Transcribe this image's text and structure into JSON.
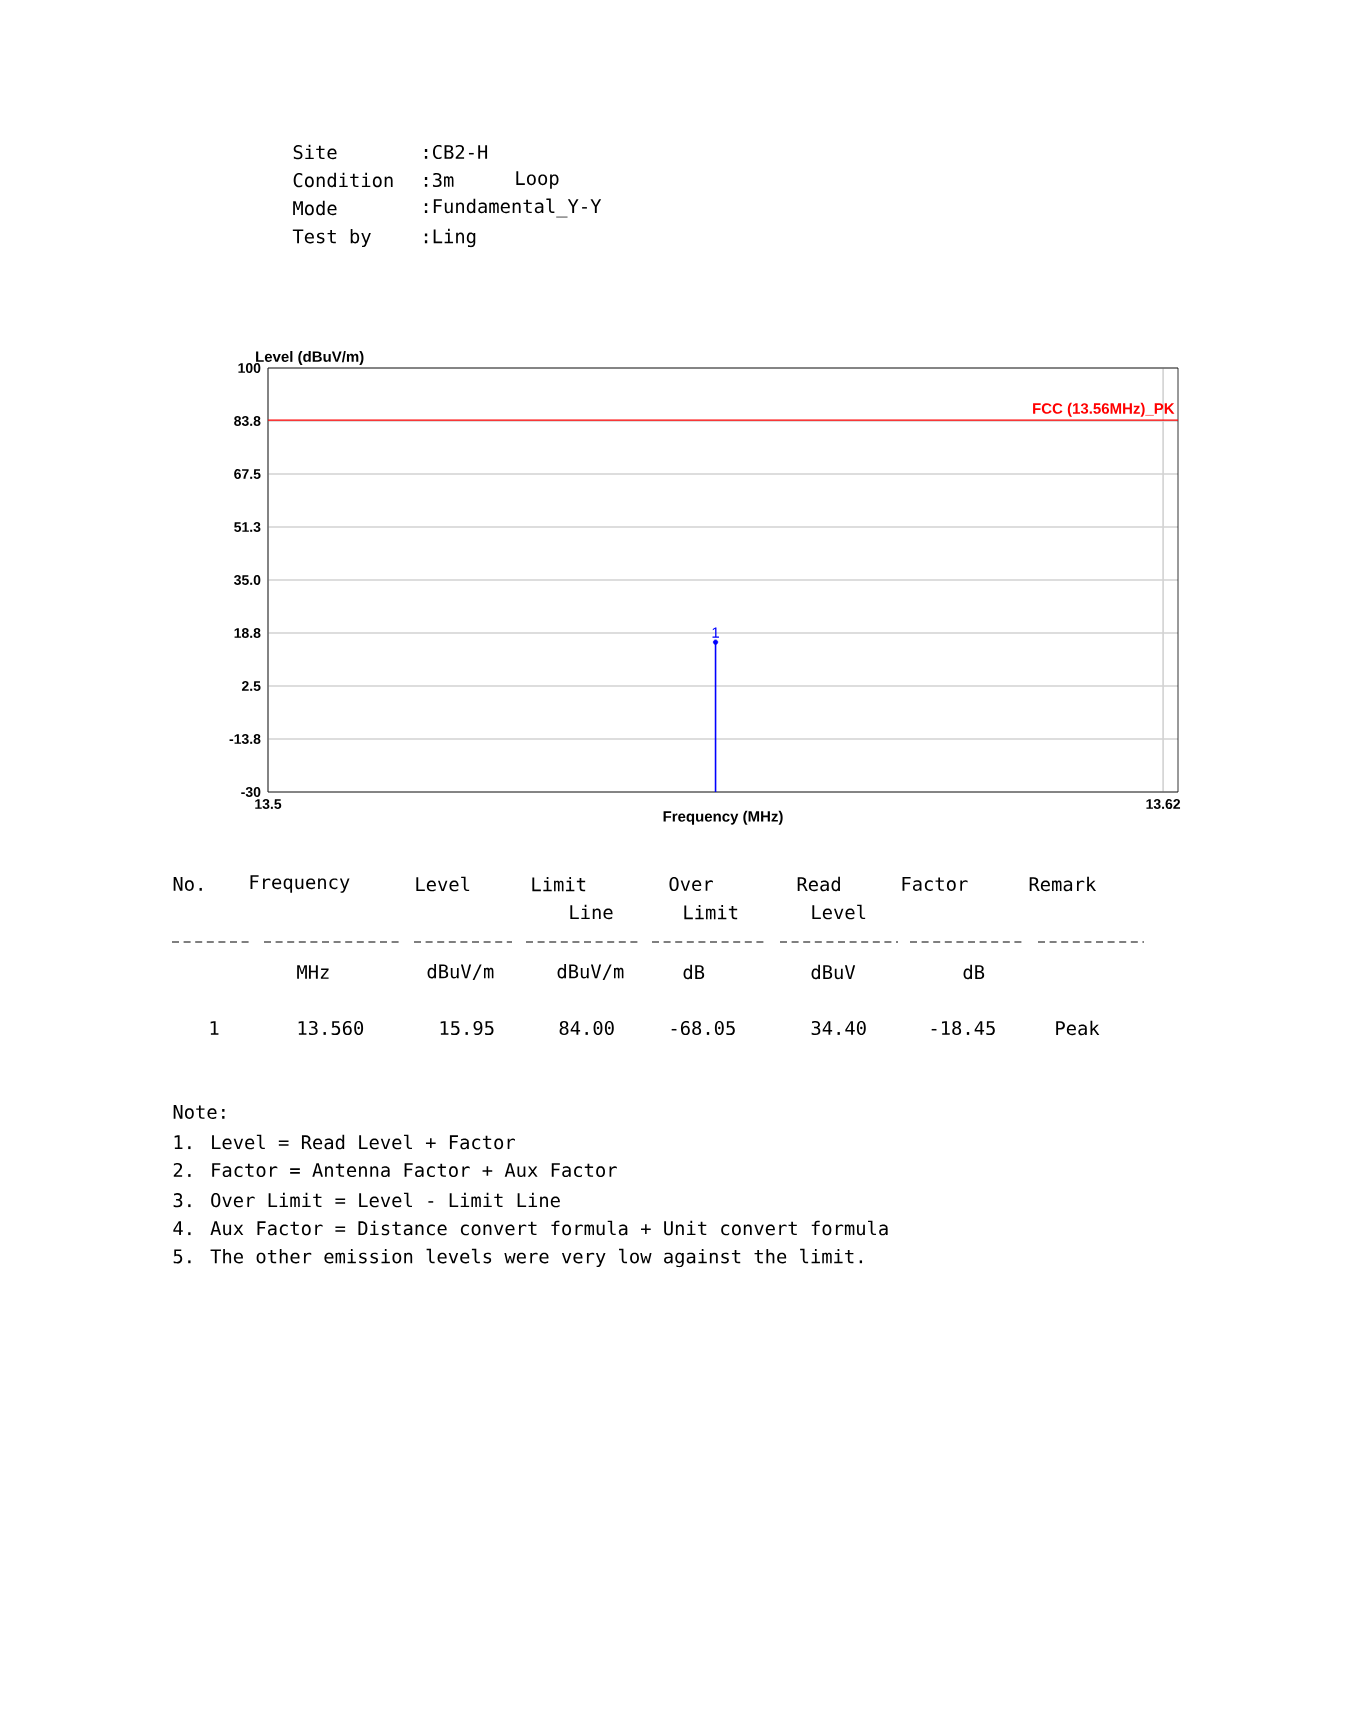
{
  "chart_data": {
    "type": "lollipop",
    "xlabel": "Frequency (MHz)",
    "ylabel": "Level (dBuV/m)",
    "x": [
      13.56
    ],
    "values": [
      15.95
    ],
    "marker": "circle",
    "color": "#0000ff",
    "xlim": [
      13.5,
      13.622
    ],
    "xticks": [
      13.5,
      13.62
    ],
    "ylim": [
      -30,
      100
    ],
    "yticks": [
      -30,
      {
        "value": -13.75,
        "label": "-13.8"
      },
      2.5,
      {
        "value": 18.75,
        "label": "18.8"
      },
      {
        "value": 35,
        "label": "35.0"
      },
      {
        "value": 51.25,
        "label": "51.3"
      },
      67.5,
      {
        "value": 83.75,
        "label": "83.8"
      },
      100
    ],
    "grid": true,
    "ref_lines": [
      {
        "axis": "y",
        "value": 84,
        "label": "FCC (13.56MHz)_PK",
        "color": "#ff0000"
      }
    ],
    "annotations": [
      {
        "text": "1",
        "x": 13.56,
        "y": 15.95
      },
      "Site",
      ":CB2-H",
      "Condition",
      ":3m",
      "Loop",
      "Mode",
      ":Fundamental_Y-Y",
      "Test by",
      ":Ling",
      "No.",
      "Frequency",
      "Level",
      "Limit",
      "Over",
      "Read",
      "Factor",
      "Remark",
      "Line",
      "Limit",
      "Level",
      "MHz",
      "dBuV/m",
      "dBuV/m",
      "dB",
      "dBuV",
      "dB",
      "1",
      "13.560",
      "15.95",
      "84.00",
      "-68.05",
      "34.40",
      "-18.45",
      "Peak",
      "Note:",
      "1. Level = Read Level + Factor",
      "2. Factor = Antenna Factor + Aux Factor",
      "3. Over Limit = Level - Limit Line",
      "4. Aux Factor = Distance convert formula + Unit convert formula",
      "5. The other emission levels were very low against the limit."
    ]
  }
}
